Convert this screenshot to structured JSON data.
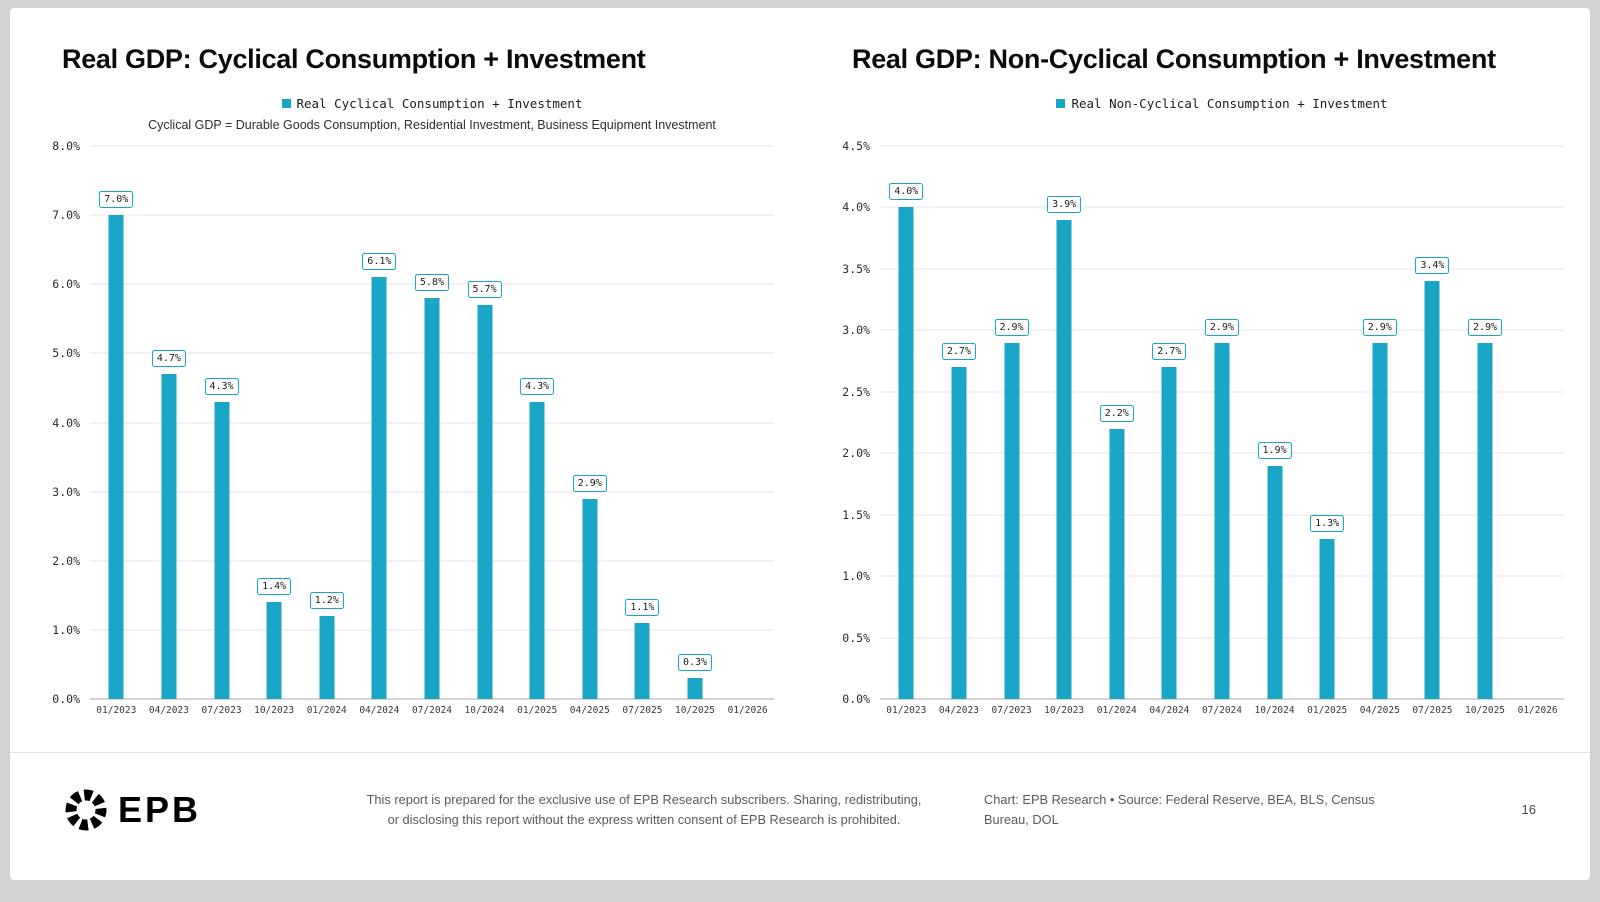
{
  "footer": {
    "logo_text": "EPB",
    "disclaimer_line1": "This report is prepared for the exclusive use of EPB Research subscribers. Sharing, redistributing,",
    "disclaimer_line2": "or disclosing this report without the express written consent of EPB Research is prohibited.",
    "credit_line1": "Chart: EPB Research  •  Source: Federal Reserve, BEA, BLS, Census",
    "credit_line2": "Bureau, DOL",
    "page_number": "16"
  },
  "chart_data": [
    {
      "type": "bar",
      "title": "Real GDP: Cyclical Consumption + Investment",
      "legend": "Real Cyclical Consumption + Investment",
      "subtitle": "Cyclical GDP = Durable Goods Consumption, Residential Investment, Business Equipment Investment",
      "categories": [
        "01/2023",
        "04/2023",
        "07/2023",
        "10/2023",
        "01/2024",
        "04/2024",
        "07/2024",
        "10/2024",
        "01/2025",
        "04/2025",
        "07/2025",
        "10/2025",
        "01/2026"
      ],
      "values": [
        7.0,
        4.7,
        4.3,
        1.4,
        1.2,
        6.1,
        5.8,
        5.7,
        4.3,
        2.9,
        1.1,
        0.3,
        null
      ],
      "labels": [
        "7.0%",
        "4.7%",
        "4.3%",
        "1.4%",
        "1.2%",
        "6.1%",
        "5.8%",
        "5.7%",
        "4.3%",
        "2.9%",
        "1.1%",
        "0.3%",
        ""
      ],
      "ylabel": "",
      "xlabel": "",
      "ylim": [
        0,
        8
      ],
      "ytick_step": 1.0,
      "grid": true,
      "legend_position": "top",
      "bar_color": "#18a5c6"
    },
    {
      "type": "bar",
      "title": "Real GDP: Non-Cyclical Consumption + Investment",
      "legend": "Real Non-Cyclical Consumption + Investment",
      "subtitle": "",
      "categories": [
        "01/2023",
        "04/2023",
        "07/2023",
        "10/2023",
        "01/2024",
        "04/2024",
        "07/2024",
        "10/2024",
        "01/2025",
        "04/2025",
        "07/2025",
        "10/2025",
        "01/2026"
      ],
      "values": [
        4.0,
        2.7,
        2.9,
        3.9,
        2.2,
        2.7,
        2.9,
        1.9,
        1.3,
        2.9,
        3.4,
        2.9,
        null
      ],
      "labels": [
        "4.0%",
        "2.7%",
        "2.9%",
        "3.9%",
        "2.2%",
        "2.7%",
        "2.9%",
        "1.9%",
        "1.3%",
        "2.9%",
        "3.4%",
        "2.9%",
        ""
      ],
      "ylabel": "",
      "xlabel": "",
      "ylim": [
        0,
        4.5
      ],
      "ytick_step": 0.5,
      "grid": true,
      "legend_position": "top",
      "bar_color": "#18a5c6"
    }
  ]
}
